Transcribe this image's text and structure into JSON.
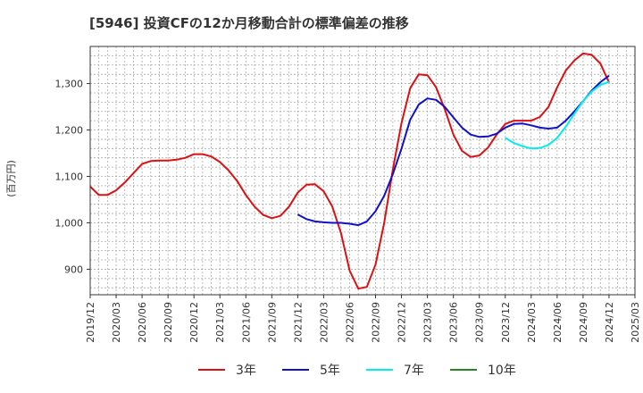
{
  "chart_data": {
    "type": "line",
    "title": "[5946]  投資CFの12か月移動合計の標準偏差の推移",
    "ylabel": "(百万円)",
    "xlabel": "",
    "ylim": [
      845,
      1380
    ],
    "yticks": [
      900,
      1000,
      1100,
      1200,
      1300
    ],
    "ytick_labels": [
      "900",
      "1,000",
      "1,100",
      "1,200",
      "1,300"
    ],
    "xlim": [
      "2019-12",
      "2025-03"
    ],
    "xticks": [
      "2019/12",
      "2020/03",
      "2020/06",
      "2020/09",
      "2020/12",
      "2021/03",
      "2021/06",
      "2021/09",
      "2021/12",
      "2022/03",
      "2022/06",
      "2022/09",
      "2022/12",
      "2023/03",
      "2023/06",
      "2023/09",
      "2023/12",
      "2024/03",
      "2024/06",
      "2024/09",
      "2024/12",
      "2025/03"
    ],
    "grid": true,
    "legend_position": "bottom",
    "series": [
      {
        "name": "3年",
        "color": "#dd1111",
        "x": [
          "2019-12",
          "2020-01",
          "2020-02",
          "2020-03",
          "2020-04",
          "2020-05",
          "2020-06",
          "2020-07",
          "2020-08",
          "2020-09",
          "2020-10",
          "2020-11",
          "2020-12",
          "2021-01",
          "2021-02",
          "2021-03",
          "2021-04",
          "2021-05",
          "2021-06",
          "2021-07",
          "2021-08",
          "2021-09",
          "2021-10",
          "2021-11",
          "2021-12",
          "2022-01",
          "2022-02",
          "2022-03",
          "2022-04",
          "2022-05",
          "2022-06",
          "2022-07",
          "2022-08",
          "2022-09",
          "2022-10",
          "2022-11",
          "2022-12",
          "2023-01",
          "2023-02",
          "2023-03",
          "2023-04",
          "2023-05",
          "2023-06",
          "2023-07",
          "2023-08",
          "2023-09",
          "2023-10",
          "2023-11",
          "2023-12",
          "2024-01",
          "2024-02",
          "2024-03",
          "2024-04",
          "2024-05",
          "2024-06",
          "2024-07",
          "2024-08",
          "2024-09",
          "2024-10",
          "2024-11",
          "2024-12"
        ],
        "values": [
          1078,
          1060,
          1060,
          1070,
          1087,
          1107,
          1127,
          1133,
          1134,
          1134,
          1136,
          1140,
          1148,
          1148,
          1143,
          1131,
          1113,
          1090,
          1060,
          1035,
          1017,
          1010,
          1015,
          1035,
          1065,
          1082,
          1083,
          1068,
          1035,
          978,
          897,
          858,
          862,
          910,
          1000,
          1115,
          1215,
          1290,
          1320,
          1318,
          1292,
          1245,
          1190,
          1155,
          1142,
          1145,
          1162,
          1190,
          1213,
          1220,
          1220,
          1220,
          1228,
          1250,
          1292,
          1328,
          1350,
          1365,
          1362,
          1343,
          1302
        ]
      },
      {
        "name": "5年",
        "color": "#1111cc",
        "x": [
          "2021-12",
          "2022-01",
          "2022-02",
          "2022-03",
          "2022-04",
          "2022-05",
          "2022-06",
          "2022-07",
          "2022-08",
          "2022-09",
          "2022-10",
          "2022-11",
          "2022-12",
          "2023-01",
          "2023-02",
          "2023-03",
          "2023-04",
          "2023-05",
          "2023-06",
          "2023-07",
          "2023-08",
          "2023-09",
          "2023-10",
          "2023-11",
          "2023-12",
          "2024-01",
          "2024-02",
          "2024-03",
          "2024-04",
          "2024-05",
          "2024-06",
          "2024-07",
          "2024-08",
          "2024-09",
          "2024-10",
          "2024-11",
          "2024-12"
        ],
        "values": [
          1018,
          1008,
          1003,
          1001,
          1000,
          1000,
          998,
          995,
          1003,
          1025,
          1058,
          1105,
          1160,
          1222,
          1255,
          1268,
          1265,
          1250,
          1227,
          1205,
          1190,
          1185,
          1186,
          1192,
          1205,
          1213,
          1214,
          1210,
          1205,
          1203,
          1205,
          1220,
          1240,
          1262,
          1285,
          1303,
          1317
        ]
      },
      {
        "name": "7年",
        "color": "#00eeee",
        "x": [
          "2023-12",
          "2024-01",
          "2024-02",
          "2024-03",
          "2024-04",
          "2024-05",
          "2024-06",
          "2024-07",
          "2024-08",
          "2024-09",
          "2024-10",
          "2024-11",
          "2024-12"
        ],
        "values": [
          1183,
          1172,
          1165,
          1160,
          1161,
          1168,
          1183,
          1207,
          1235,
          1262,
          1283,
          1297,
          1304
        ]
      },
      {
        "name": "10年",
        "color": "#228822",
        "x": [],
        "values": []
      }
    ]
  }
}
